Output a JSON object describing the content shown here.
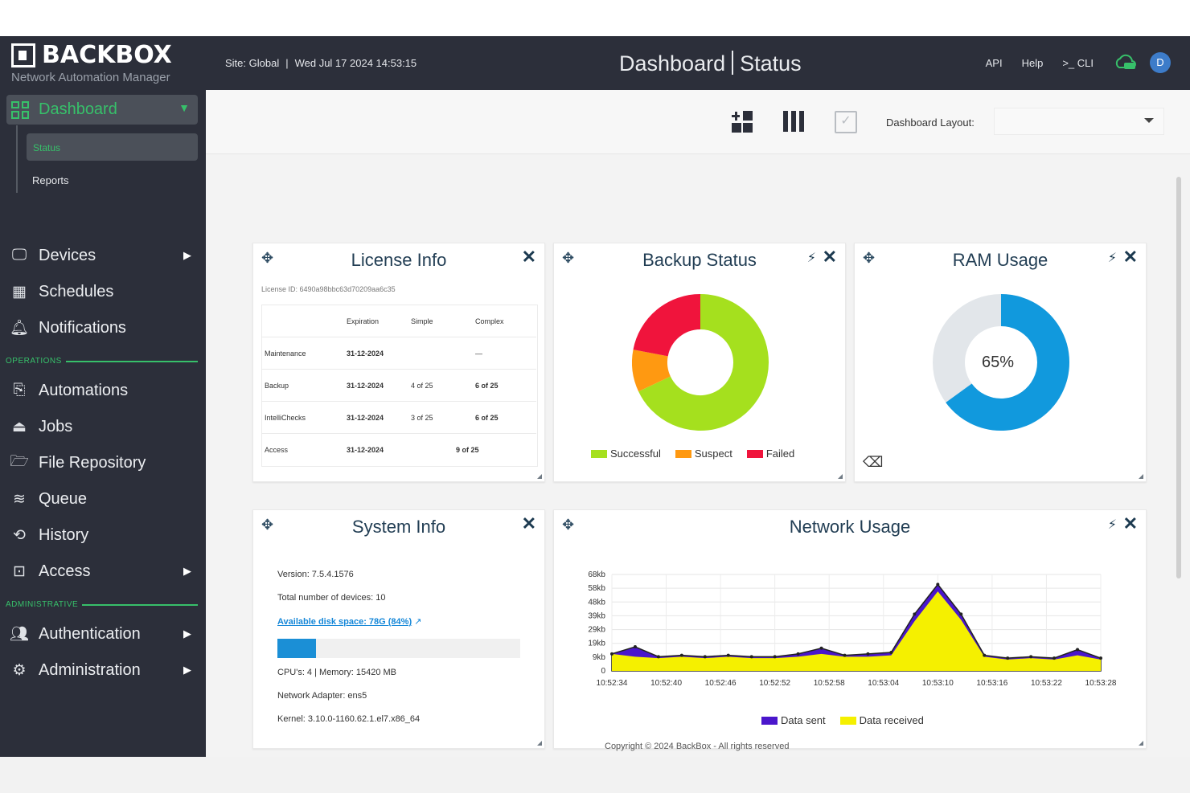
{
  "header": {
    "brand": "BACKBOX",
    "subtitle": "Network Automation Manager",
    "site": "Site: Global",
    "datetime": "Wed Jul 17 2024 14:53:15",
    "title_left": "Dashboard",
    "title_right": "Status",
    "links": {
      "api": "API",
      "help": "Help",
      "cli": ">_ CLI"
    },
    "avatar_initial": "D"
  },
  "sidebar": {
    "dashboard": "Dashboard",
    "sub_status": "Status",
    "sub_reports": "Reports",
    "items": [
      {
        "label": "Devices",
        "icon": "monitor-icon",
        "arrow": true
      },
      {
        "label": "Schedules",
        "icon": "calendar-icon",
        "arrow": false
      },
      {
        "label": "Notifications",
        "icon": "bell-icon",
        "arrow": false
      }
    ],
    "section_operations": "OPERATIONS",
    "operations": [
      {
        "label": "Automations",
        "icon": "automation-icon",
        "arrow": false
      },
      {
        "label": "Jobs",
        "icon": "jobs-icon",
        "arrow": false
      },
      {
        "label": "File Repository",
        "icon": "folder-icon",
        "arrow": false
      },
      {
        "label": "Queue",
        "icon": "layers-icon",
        "arrow": false
      },
      {
        "label": "History",
        "icon": "history-icon",
        "arrow": false
      },
      {
        "label": "Access",
        "icon": "terminal-icon",
        "arrow": true
      }
    ],
    "section_admin": "ADMINISTRATIVE",
    "admin": [
      {
        "label": "Authentication",
        "icon": "users-icon",
        "arrow": true
      },
      {
        "label": "Administration",
        "icon": "gear-icon",
        "arrow": true
      }
    ]
  },
  "toolbar": {
    "layout_label": "Dashboard Layout:",
    "layout_value": ""
  },
  "license": {
    "title": "License Info",
    "license_id": "License ID: 6490a98bbc63d70209aa6c35",
    "headers": [
      "",
      "Expiration",
      "Simple",
      "Complex"
    ],
    "rows": [
      [
        "Maintenance",
        "31-12-2024",
        "",
        "—"
      ],
      [
        "Backup",
        "31-12-2024",
        "4 of 25",
        "6 of 25"
      ],
      [
        "IntelliChecks",
        "31-12-2024",
        "3 of 25",
        "6 of 25"
      ],
      [
        "Access",
        "31-12-2024",
        "9 of 25",
        ""
      ]
    ]
  },
  "backup": {
    "title": "Backup Status",
    "legend": [
      {
        "label": "Successful",
        "color": "#a5e01e"
      },
      {
        "label": "Suspect",
        "color": "#ff9911"
      },
      {
        "label": "Failed",
        "color": "#f0143c"
      }
    ],
    "values": [
      68,
      10,
      22
    ]
  },
  "ram": {
    "title": "RAM Usage",
    "percent_label": "65%",
    "percent": 65,
    "used_color": "#1199dd",
    "free_color": "#e2e6ea"
  },
  "system": {
    "title": "System Info",
    "version": "Version: 7.5.4.1576",
    "devices": "Total number of devices: 10",
    "disk_link": "Available disk space: 78G (84%)",
    "disk_fraction": 0.16,
    "cpu": "CPU's: 4 | Memory: 15420 MB",
    "adapter": "Network Adapter: ens5",
    "kernel": "Kernel: 3.10.0-1160.62.1.el7.x86_64"
  },
  "footer": "Copyright © 2024 BackBox - All rights reserved",
  "chart_data": {
    "type": "area",
    "title": "Network Usage",
    "x": [
      "10:52:34",
      "10:52:37",
      "10:52:40",
      "10:52:43",
      "10:52:46",
      "10:52:49",
      "10:52:52",
      "10:52:55",
      "10:52:58",
      "10:53:01",
      "10:53:04",
      "10:53:07",
      "10:53:08",
      "10:53:10",
      "10:53:12",
      "10:53:13",
      "10:53:16",
      "10:53:19",
      "10:53:22",
      "10:53:25",
      "10:53:28",
      "10:53:30"
    ],
    "xticks": [
      "10:52:34",
      "10:52:40",
      "10:52:46",
      "10:52:52",
      "10:52:58",
      "10:53:04",
      "10:53:10",
      "10:53:16",
      "10:53:22",
      "10:53:28"
    ],
    "yticks": [
      "68kb",
      "58kb",
      "48kb",
      "39kb",
      "29kb",
      "19kb",
      "9kb",
      "0"
    ],
    "ylim": [
      0,
      68
    ],
    "series": [
      {
        "name": "Data sent",
        "color": "#4a16cc",
        "values": [
          12,
          17,
          10,
          11,
          10,
          11,
          10,
          10,
          12,
          16,
          11,
          12,
          13,
          40,
          61,
          40,
          11,
          9,
          10,
          9,
          15,
          9
        ]
      },
      {
        "name": "Data received",
        "color": "#f5f000",
        "values": [
          12,
          10,
          9,
          10,
          9,
          10,
          9,
          9,
          10,
          12,
          10,
          10,
          11,
          35,
          56,
          36,
          10,
          8,
          9,
          8,
          11,
          8
        ]
      }
    ],
    "legend_position": "bottom"
  }
}
